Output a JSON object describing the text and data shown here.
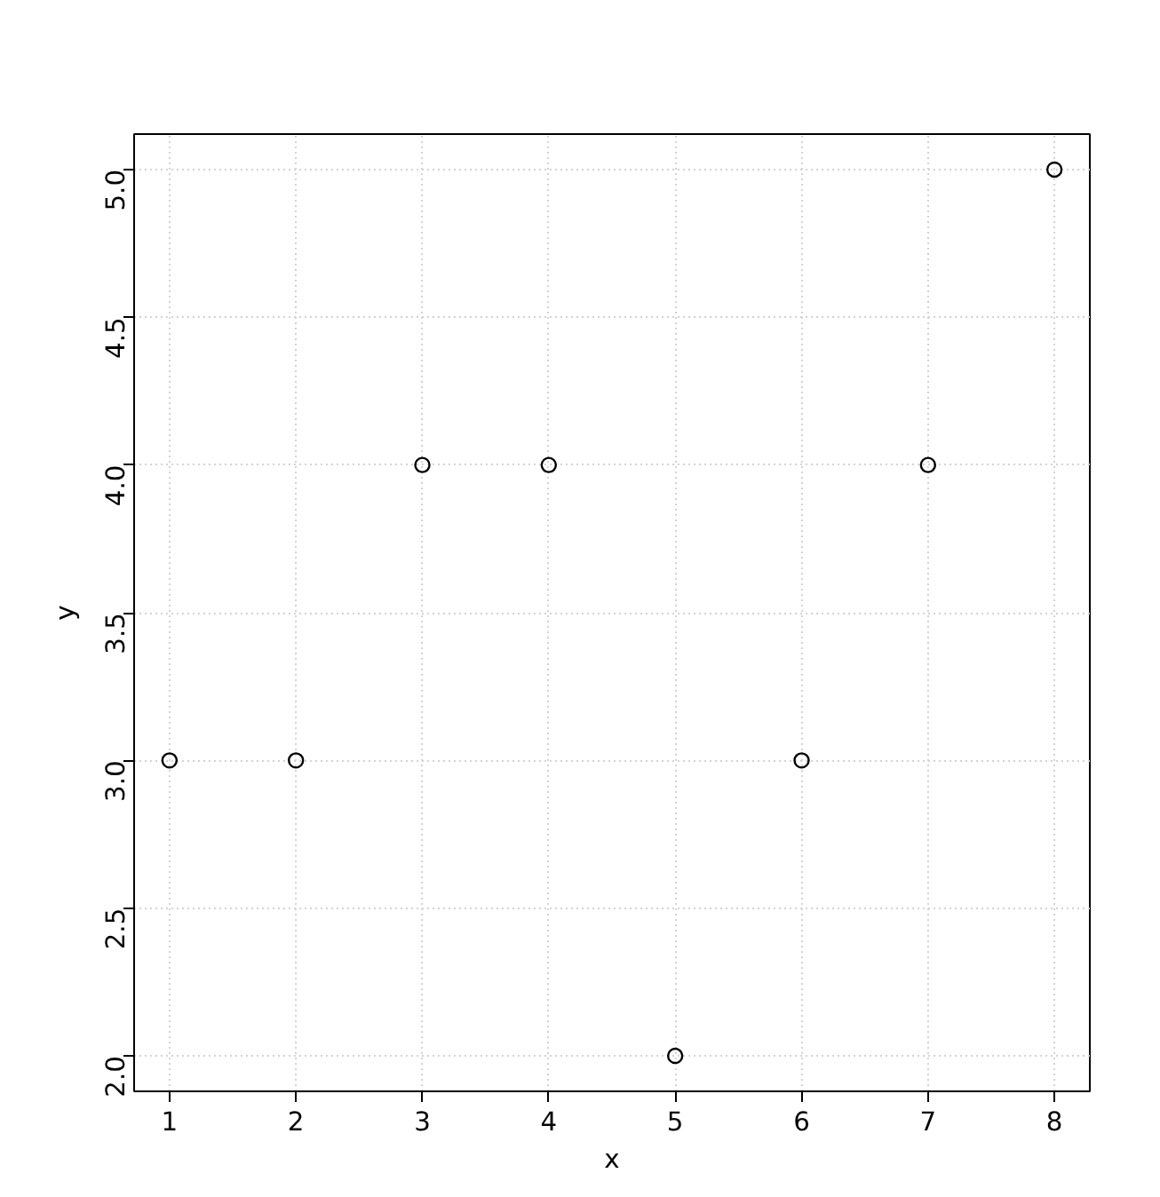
{
  "chart_data": {
    "type": "scatter",
    "xlabel": "x",
    "ylabel": "y",
    "x": [
      1,
      2,
      3,
      4,
      5,
      6,
      7,
      8
    ],
    "series": [
      {
        "color": "#000000",
        "values": [
          3,
          3,
          4,
          4,
          2,
          3,
          4,
          5
        ]
      }
    ],
    "xlim": [
      0.72,
      8.28
    ],
    "ylim": [
      1.88,
      5.12
    ],
    "xticks": [
      1,
      2,
      3,
      4,
      5,
      6,
      7,
      8
    ],
    "yticks": [
      {
        "value": 2,
        "label": "2.0"
      },
      {
        "value": 2.5,
        "label": "2.5"
      },
      {
        "value": 3,
        "label": "3.0"
      },
      {
        "value": 3.5,
        "label": "3.5"
      },
      {
        "value": 4,
        "label": "4.0"
      },
      {
        "value": 4.5,
        "label": "4.5"
      },
      {
        "value": 5,
        "label": "5.0"
      }
    ],
    "grid": true,
    "marker": "circle"
  }
}
